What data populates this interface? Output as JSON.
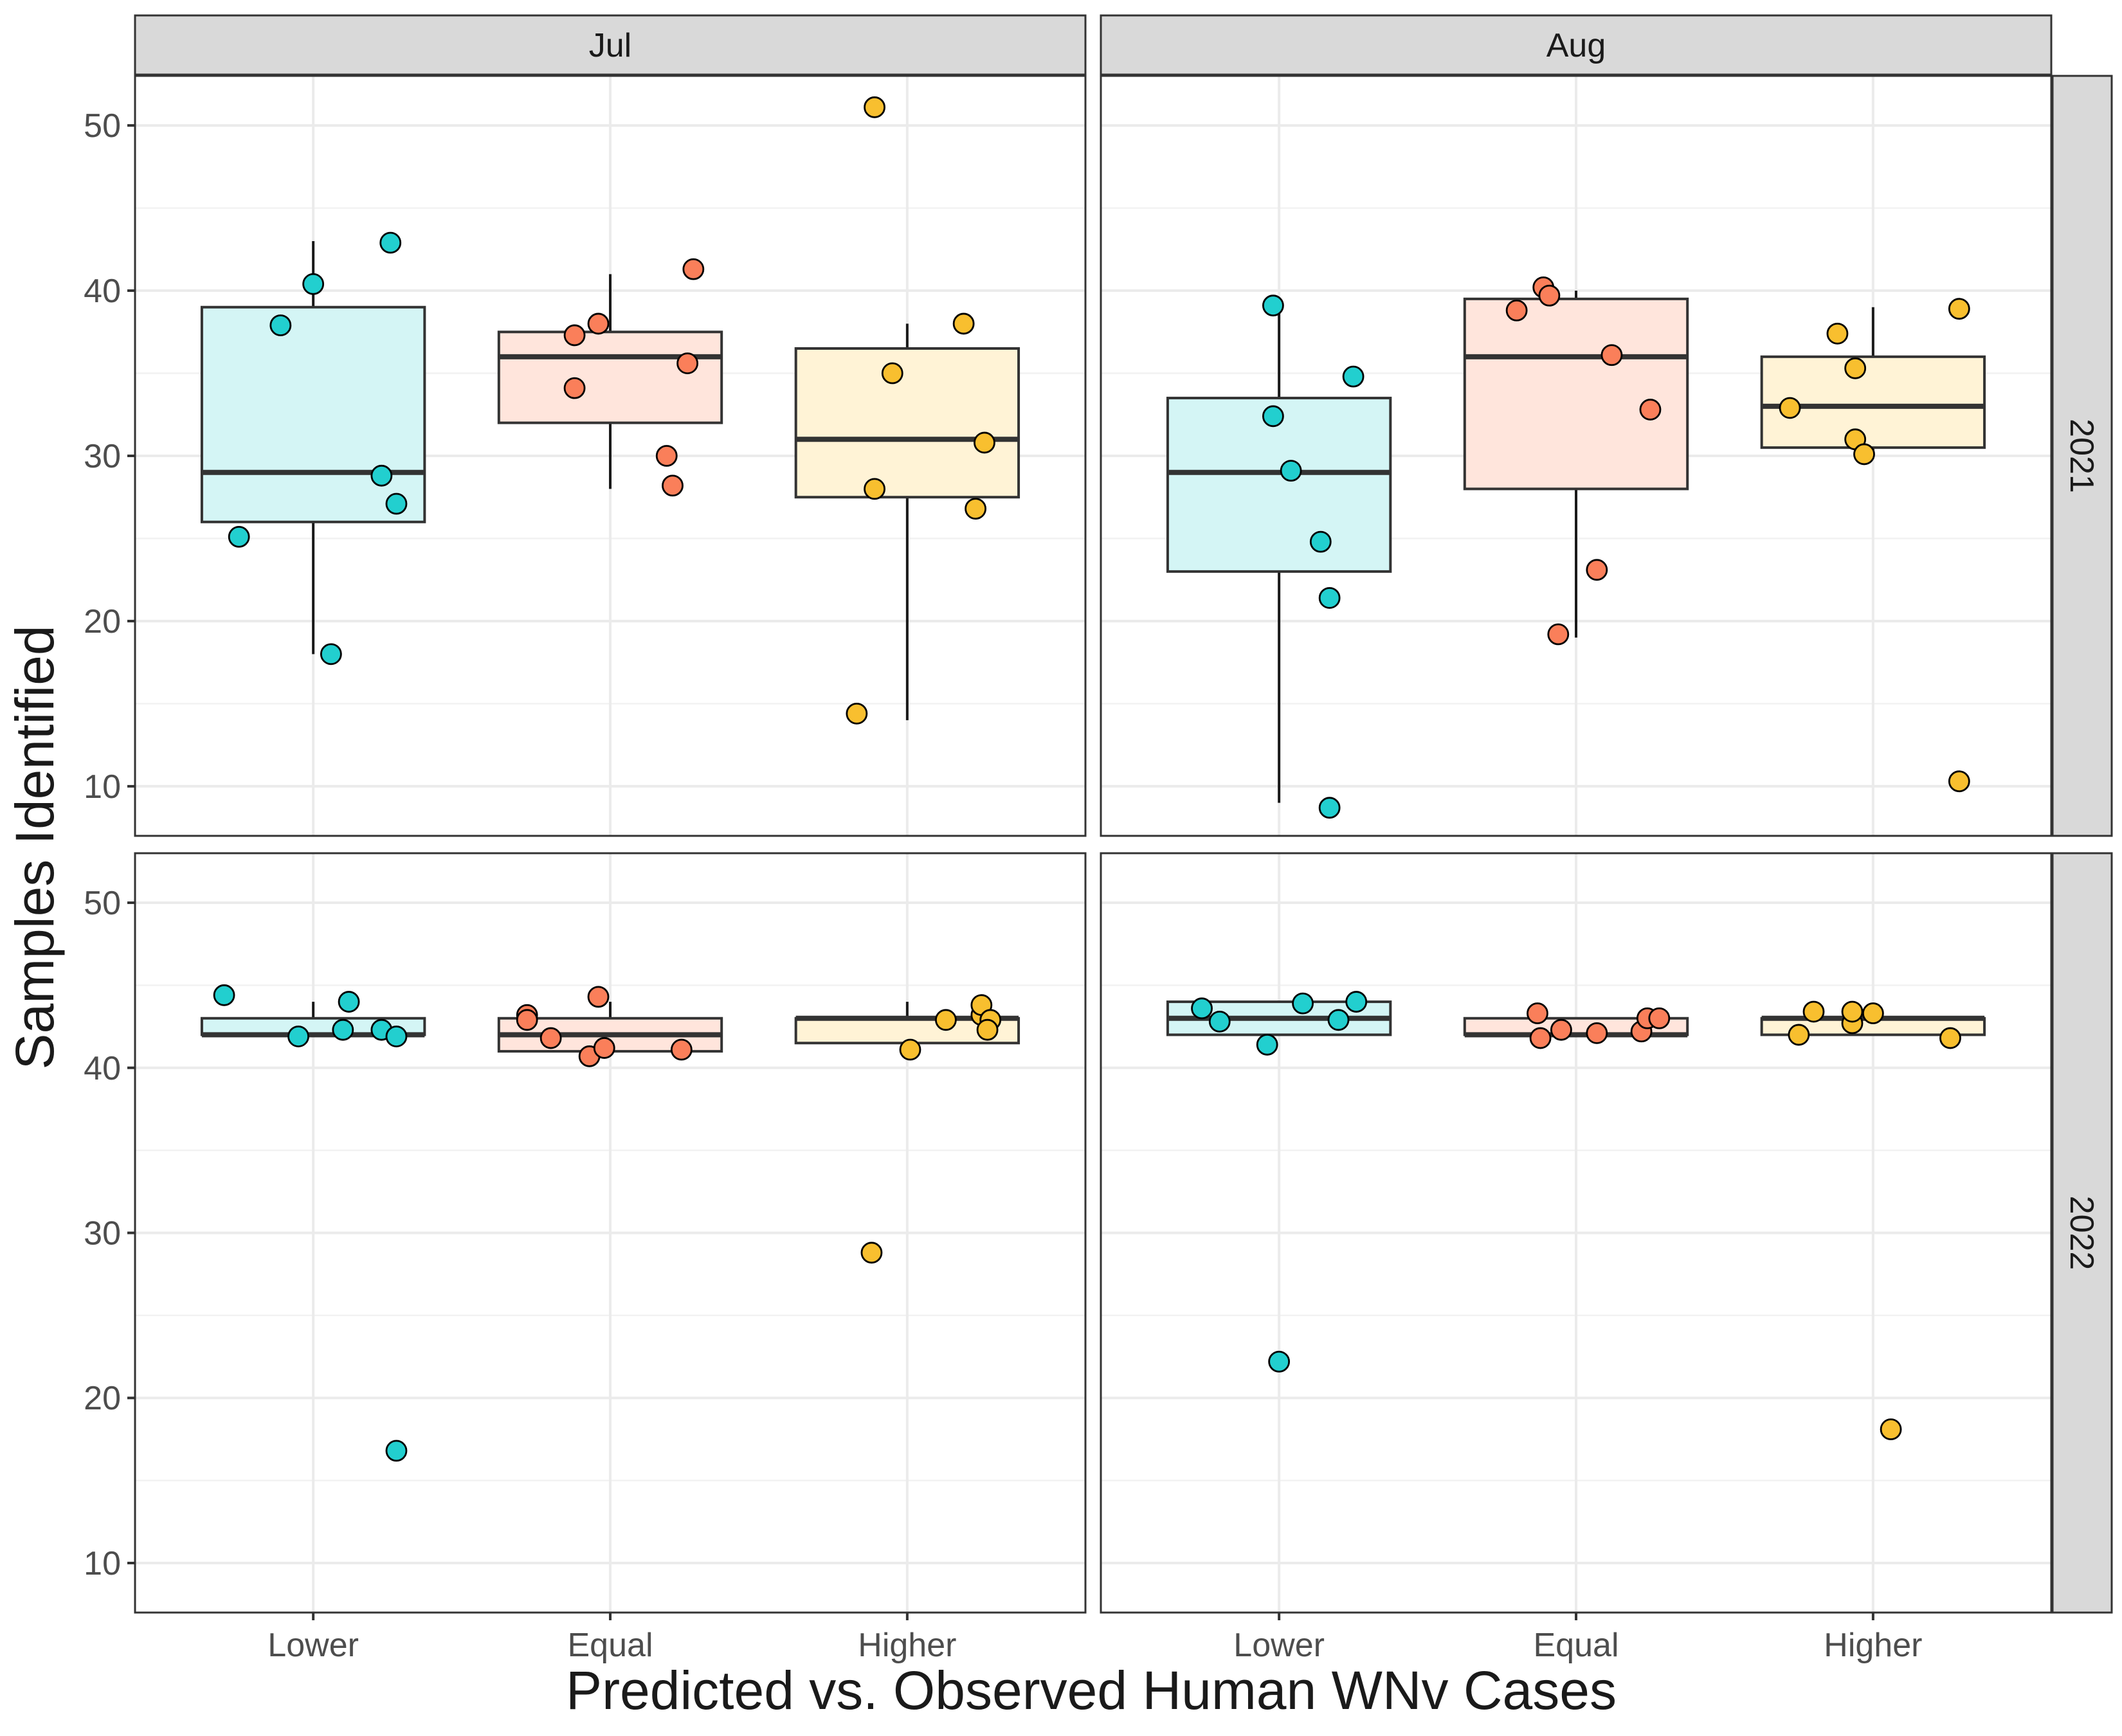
{
  "chart_data": {
    "type": "boxplot-faceted",
    "xlabel": "Predicted vs. Observed Human WNv Cases",
    "ylabel": "Samples Identified",
    "categories": [
      "Lower",
      "Equal",
      "Higher"
    ],
    "columns": [
      "Jul",
      "Aug"
    ],
    "rows": [
      "2021",
      "2022"
    ],
    "ylim": [
      7,
      53
    ],
    "yticks": [
      10,
      20,
      30,
      40,
      50
    ],
    "ytick_labels": [
      "10",
      "20",
      "30",
      "40",
      "50"
    ],
    "grid": true,
    "colors": {
      "Lower": {
        "point": "#22CFCF",
        "fill": "#D4F5F5"
      },
      "Equal": {
        "point": "#FA7F5A",
        "fill": "#FFE5DC"
      },
      "Higher": {
        "point": "#F8BF2F",
        "fill": "#FFF3D6"
      }
    },
    "panels": [
      {
        "row": "2021",
        "col": "Jul",
        "boxes": [
          {
            "category": "Lower",
            "whisker_low": 18,
            "q1": 26,
            "median": 29,
            "q3": 39,
            "whisker_high": 43
          },
          {
            "category": "Equal",
            "whisker_low": 28,
            "q1": 32,
            "median": 36,
            "q3": 37.5,
            "whisker_high": 41
          },
          {
            "category": "Higher",
            "whisker_low": 14,
            "q1": 27.5,
            "median": 31,
            "q3": 36.5,
            "whisker_high": 38
          }
        ],
        "points": [
          {
            "category": "Lower",
            "jitter": -0.25,
            "value": 25.1
          },
          {
            "category": "Lower",
            "jitter": -0.11,
            "value": 37.9
          },
          {
            "category": "Lower",
            "jitter": 0.0,
            "value": 40.4
          },
          {
            "category": "Lower",
            "jitter": 0.06,
            "value": 18.0
          },
          {
            "category": "Lower",
            "jitter": 0.23,
            "value": 28.8
          },
          {
            "category": "Lower",
            "jitter": 0.26,
            "value": 42.9
          },
          {
            "category": "Lower",
            "jitter": 0.28,
            "value": 27.1
          },
          {
            "category": "Equal",
            "jitter": -0.12,
            "value": 37.3
          },
          {
            "category": "Equal",
            "jitter": -0.12,
            "value": 34.1
          },
          {
            "category": "Equal",
            "jitter": -0.04,
            "value": 38.0
          },
          {
            "category": "Equal",
            "jitter": 0.19,
            "value": 30.0
          },
          {
            "category": "Equal",
            "jitter": 0.21,
            "value": 28.2
          },
          {
            "category": "Equal",
            "jitter": 0.26,
            "value": 35.6
          },
          {
            "category": "Equal",
            "jitter": 0.28,
            "value": 41.3
          },
          {
            "category": "Higher",
            "jitter": -0.17,
            "value": 14.4
          },
          {
            "category": "Higher",
            "jitter": -0.11,
            "value": 28.0
          },
          {
            "category": "Higher",
            "jitter": -0.11,
            "value": 51.1
          },
          {
            "category": "Higher",
            "jitter": -0.05,
            "value": 35.0
          },
          {
            "category": "Higher",
            "jitter": 0.19,
            "value": 38.0
          },
          {
            "category": "Higher",
            "jitter": 0.23,
            "value": 26.8
          },
          {
            "category": "Higher",
            "jitter": 0.26,
            "value": 30.8
          }
        ]
      },
      {
        "row": "2021",
        "col": "Aug",
        "boxes": [
          {
            "category": "Lower",
            "whisker_low": 9,
            "q1": 23,
            "median": 29,
            "q3": 33.5,
            "whisker_high": 39
          },
          {
            "category": "Equal",
            "whisker_low": 19,
            "q1": 28,
            "median": 36,
            "q3": 39.5,
            "whisker_high": 40
          },
          {
            "category": "Higher",
            "whisker_low": 30,
            "q1": 30.5,
            "median": 33,
            "q3": 36,
            "whisker_high": 39
          }
        ],
        "points": [
          {
            "category": "Lower",
            "jitter": -0.02,
            "value": 39.1
          },
          {
            "category": "Lower",
            "jitter": -0.02,
            "value": 32.4
          },
          {
            "category": "Lower",
            "jitter": 0.04,
            "value": 29.1
          },
          {
            "category": "Lower",
            "jitter": 0.14,
            "value": 24.8
          },
          {
            "category": "Lower",
            "jitter": 0.17,
            "value": 21.4
          },
          {
            "category": "Lower",
            "jitter": 0.17,
            "value": 8.7
          },
          {
            "category": "Lower",
            "jitter": 0.25,
            "value": 34.8
          },
          {
            "category": "Equal",
            "jitter": -0.2,
            "value": 38.8
          },
          {
            "category": "Equal",
            "jitter": -0.11,
            "value": 40.2
          },
          {
            "category": "Equal",
            "jitter": -0.09,
            "value": 39.7
          },
          {
            "category": "Equal",
            "jitter": -0.06,
            "value": 19.2
          },
          {
            "category": "Equal",
            "jitter": 0.07,
            "value": 23.1
          },
          {
            "category": "Equal",
            "jitter": 0.12,
            "value": 36.1
          },
          {
            "category": "Equal",
            "jitter": 0.25,
            "value": 32.8
          },
          {
            "category": "Higher",
            "jitter": -0.28,
            "value": 32.9
          },
          {
            "category": "Higher",
            "jitter": -0.12,
            "value": 37.4
          },
          {
            "category": "Higher",
            "jitter": -0.06,
            "value": 35.3
          },
          {
            "category": "Higher",
            "jitter": -0.06,
            "value": 31.0
          },
          {
            "category": "Higher",
            "jitter": -0.03,
            "value": 30.1
          },
          {
            "category": "Higher",
            "jitter": 0.29,
            "value": 38.9
          },
          {
            "category": "Higher",
            "jitter": 0.29,
            "value": 10.3
          }
        ]
      },
      {
        "row": "2022",
        "col": "Jul",
        "boxes": [
          {
            "category": "Lower",
            "whisker_low": 42,
            "q1": 42,
            "median": 42,
            "q3": 43,
            "whisker_high": 44
          },
          {
            "category": "Equal",
            "whisker_low": 41,
            "q1": 41,
            "median": 42,
            "q3": 43,
            "whisker_high": 44
          },
          {
            "category": "Higher",
            "whisker_low": 41.5,
            "q1": 41.5,
            "median": 43,
            "q3": 43,
            "whisker_high": 44
          }
        ],
        "points": [
          {
            "category": "Lower",
            "jitter": -0.3,
            "value": 44.4
          },
          {
            "category": "Lower",
            "jitter": -0.05,
            "value": 41.9
          },
          {
            "category": "Lower",
            "jitter": 0.1,
            "value": 42.3
          },
          {
            "category": "Lower",
            "jitter": 0.12,
            "value": 44.0
          },
          {
            "category": "Lower",
            "jitter": 0.23,
            "value": 42.3
          },
          {
            "category": "Lower",
            "jitter": 0.28,
            "value": 41.9
          },
          {
            "category": "Lower",
            "jitter": 0.28,
            "value": 16.8
          },
          {
            "category": "Equal",
            "jitter": -0.28,
            "value": 43.2
          },
          {
            "category": "Equal",
            "jitter": -0.28,
            "value": 42.9
          },
          {
            "category": "Equal",
            "jitter": -0.2,
            "value": 41.8
          },
          {
            "category": "Equal",
            "jitter": -0.07,
            "value": 40.7
          },
          {
            "category": "Equal",
            "jitter": -0.02,
            "value": 41.2
          },
          {
            "category": "Equal",
            "jitter": -0.04,
            "value": 44.3
          },
          {
            "category": "Equal",
            "jitter": 0.24,
            "value": 41.1
          },
          {
            "category": "Higher",
            "jitter": -0.12,
            "value": 28.8
          },
          {
            "category": "Higher",
            "jitter": 0.01,
            "value": 41.1
          },
          {
            "category": "Higher",
            "jitter": 0.13,
            "value": 42.9
          },
          {
            "category": "Higher",
            "jitter": 0.25,
            "value": 43.2
          },
          {
            "category": "Higher",
            "jitter": 0.25,
            "value": 43.8
          },
          {
            "category": "Higher",
            "jitter": 0.28,
            "value": 42.9
          },
          {
            "category": "Higher",
            "jitter": 0.27,
            "value": 42.3
          }
        ]
      },
      {
        "row": "2022",
        "col": "Aug",
        "boxes": [
          {
            "category": "Lower",
            "whisker_low": 42,
            "q1": 42,
            "median": 43,
            "q3": 44,
            "whisker_high": 44
          },
          {
            "category": "Equal",
            "whisker_low": 42,
            "q1": 42,
            "median": 42,
            "q3": 43,
            "whisker_high": 43
          },
          {
            "category": "Higher",
            "whisker_low": 42,
            "q1": 42,
            "median": 43,
            "q3": 43,
            "whisker_high": 43
          }
        ],
        "points": [
          {
            "category": "Lower",
            "jitter": -0.26,
            "value": 43.6
          },
          {
            "category": "Lower",
            "jitter": -0.2,
            "value": 42.8
          },
          {
            "category": "Lower",
            "jitter": -0.04,
            "value": 41.4
          },
          {
            "category": "Lower",
            "jitter": 0.0,
            "value": 22.2
          },
          {
            "category": "Lower",
            "jitter": 0.08,
            "value": 43.9
          },
          {
            "category": "Lower",
            "jitter": 0.2,
            "value": 42.9
          },
          {
            "category": "Lower",
            "jitter": 0.26,
            "value": 44.0
          },
          {
            "category": "Equal",
            "jitter": -0.13,
            "value": 43.3
          },
          {
            "category": "Equal",
            "jitter": -0.12,
            "value": 41.8
          },
          {
            "category": "Equal",
            "jitter": -0.05,
            "value": 42.3
          },
          {
            "category": "Equal",
            "jitter": 0.07,
            "value": 42.1
          },
          {
            "category": "Equal",
            "jitter": 0.22,
            "value": 42.2
          },
          {
            "category": "Equal",
            "jitter": 0.24,
            "value": 43.0
          },
          {
            "category": "Equal",
            "jitter": 0.28,
            "value": 43.0
          },
          {
            "category": "Higher",
            "jitter": -0.25,
            "value": 42.0
          },
          {
            "category": "Higher",
            "jitter": -0.2,
            "value": 43.4
          },
          {
            "category": "Higher",
            "jitter": -0.07,
            "value": 42.7
          },
          {
            "category": "Higher",
            "jitter": -0.07,
            "value": 43.4
          },
          {
            "category": "Higher",
            "jitter": 0.06,
            "value": 18.1
          },
          {
            "category": "Higher",
            "jitter": 0.0,
            "value": 43.3
          },
          {
            "category": "Higher",
            "jitter": 0.26,
            "value": 41.8
          }
        ]
      }
    ]
  }
}
